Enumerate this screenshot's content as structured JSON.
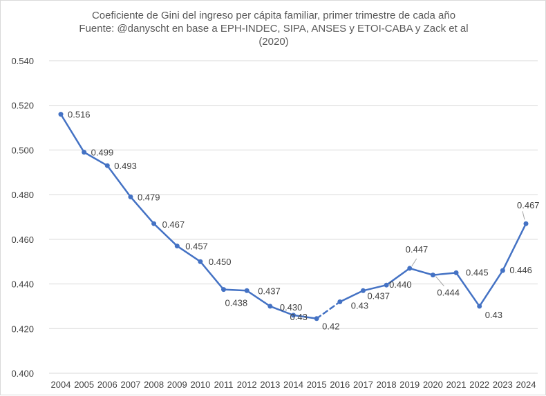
{
  "chart_data": {
    "type": "line",
    "title_lines": [
      "Coeficiente de Gini del ingreso per cápita familiar, primer trimestre de cada año",
      "Fuente: @danyscht en base a EPH-INDEC, SIPA, ANSES y ETOI-CABA y Zack et al",
      "(2020)"
    ],
    "categories": [
      "2004",
      "2005",
      "2006",
      "2007",
      "2008",
      "2009",
      "2010",
      "2011",
      "2012",
      "2013",
      "2014",
      "2015",
      "2016",
      "2017",
      "2018",
      "2019",
      "2020",
      "2021",
      "2022",
      "2023",
      "2024"
    ],
    "values": [
      0.516,
      0.499,
      0.493,
      0.479,
      0.467,
      0.457,
      0.45,
      0.4375,
      0.437,
      0.43,
      0.426,
      0.4245,
      0.432,
      0.437,
      0.4395,
      0.447,
      0.444,
      0.445,
      0.43,
      0.446,
      0.467
    ],
    "data_labels": [
      "0.516",
      "0.499",
      "0.493",
      "0.479",
      "0.467",
      "0.457",
      "0.450",
      "0.438",
      "0.437",
      "0.430",
      "0.43",
      "0.42",
      "0.43",
      "0.437",
      "0.440",
      "0.447",
      "0.444",
      "0.445",
      "0.43",
      "0.446",
      "0.467"
    ],
    "dashed_segment": [
      "2015",
      "2016"
    ],
    "ylim": [
      0.4,
      0.54
    ],
    "yticks": [
      "0.400",
      "0.420",
      "0.440",
      "0.460",
      "0.480",
      "0.500",
      "0.520",
      "0.540"
    ],
    "grid": true,
    "legend": "none",
    "line_color": "#4472c4"
  }
}
